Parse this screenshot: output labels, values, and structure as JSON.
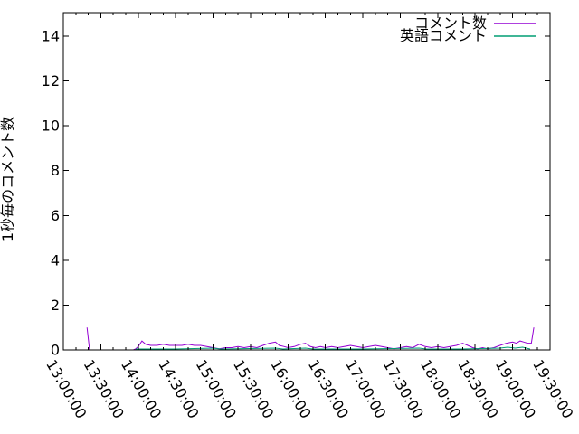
{
  "window": {
    "background": "#ffffff"
  },
  "chart_data": {
    "type": "line",
    "title": "",
    "xlabel": "",
    "ylabel": "1秒毎のコメント数",
    "x_tick_labels": [
      "13:00:00",
      "13:30:00",
      "14:00:00",
      "14:30:00",
      "15:00:00",
      "15:30:00",
      "16:00:00",
      "16:30:00",
      "17:00:00",
      "17:30:00",
      "18:00:00",
      "18:30:00",
      "19:00:00",
      "19:30:00"
    ],
    "x_minor_tick_minutes": 10,
    "y_ticks": [
      "0",
      "2",
      "4",
      "6",
      "8",
      "10",
      "12",
      "14"
    ],
    "ylim": [
      0,
      15.05
    ],
    "grid": "off",
    "legend_position": "top-right-inside",
    "axis_color": "#000000",
    "series": [
      {
        "name": "コメント数",
        "color": "#9400d3",
        "points": [
          [
            "13:19",
            1
          ],
          [
            "13:21",
            0
          ],
          [
            "13:30",
            0
          ],
          [
            "13:40",
            0
          ],
          [
            "13:50",
            0
          ],
          [
            "13:56",
            0
          ],
          [
            "13:58",
            0.05
          ],
          [
            "14:00",
            0.15
          ],
          [
            "14:03",
            0.4
          ],
          [
            "14:06",
            0.25
          ],
          [
            "14:10",
            0.2
          ],
          [
            "14:15",
            0.2
          ],
          [
            "14:20",
            0.25
          ],
          [
            "14:25",
            0.2
          ],
          [
            "14:30",
            0.2
          ],
          [
            "14:35",
            0.2
          ],
          [
            "14:40",
            0.25
          ],
          [
            "14:45",
            0.2
          ],
          [
            "14:50",
            0.2
          ],
          [
            "14:55",
            0.15
          ],
          [
            "15:00",
            0.1
          ],
          [
            "15:05",
            0.05
          ],
          [
            "15:10",
            0.1
          ],
          [
            "15:15",
            0.1
          ],
          [
            "15:20",
            0.15
          ],
          [
            "15:25",
            0.1
          ],
          [
            "15:30",
            0.15
          ],
          [
            "15:35",
            0.1
          ],
          [
            "15:40",
            0.2
          ],
          [
            "15:45",
            0.3
          ],
          [
            "15:50",
            0.35
          ],
          [
            "15:53",
            0.2
          ],
          [
            "15:57",
            0.15
          ],
          [
            "16:00",
            0.1
          ],
          [
            "16:05",
            0.15
          ],
          [
            "16:10",
            0.25
          ],
          [
            "16:14",
            0.3
          ],
          [
            "16:18",
            0.15
          ],
          [
            "16:22",
            0.1
          ],
          [
            "16:26",
            0.15
          ],
          [
            "16:30",
            0.1
          ],
          [
            "16:35",
            0.15
          ],
          [
            "16:40",
            0.1
          ],
          [
            "16:45",
            0.15
          ],
          [
            "16:50",
            0.2
          ],
          [
            "16:55",
            0.15
          ],
          [
            "17:00",
            0.1
          ],
          [
            "17:05",
            0.15
          ],
          [
            "17:10",
            0.2
          ],
          [
            "17:15",
            0.15
          ],
          [
            "17:20",
            0.1
          ],
          [
            "17:25",
            0.05
          ],
          [
            "17:30",
            0.1
          ],
          [
            "17:35",
            0.15
          ],
          [
            "17:40",
            0.1
          ],
          [
            "17:45",
            0.25
          ],
          [
            "17:50",
            0.15
          ],
          [
            "17:55",
            0.1
          ],
          [
            "18:00",
            0.15
          ],
          [
            "18:05",
            0.1
          ],
          [
            "18:10",
            0.15
          ],
          [
            "18:15",
            0.2
          ],
          [
            "18:20",
            0.3
          ],
          [
            "18:24",
            0.2
          ],
          [
            "18:28",
            0.1
          ],
          [
            "18:32",
            0.05
          ],
          [
            "18:36",
            0.1
          ],
          [
            "18:40",
            0.05
          ],
          [
            "18:45",
            0.1
          ],
          [
            "18:50",
            0.2
          ],
          [
            "18:55",
            0.3
          ],
          [
            "19:00",
            0.35
          ],
          [
            "19:03",
            0.3
          ],
          [
            "19:06",
            0.4
          ],
          [
            "19:09",
            0.35
          ],
          [
            "19:12",
            0.3
          ],
          [
            "19:15",
            0.3
          ],
          [
            "19:17",
            1
          ]
        ]
      },
      {
        "name": "英語コメント",
        "color": "#009e73",
        "points": [
          [
            "13:58",
            0.04
          ],
          [
            "14:30",
            0.04
          ],
          [
            "15:00",
            0.08
          ],
          [
            "15:06",
            0.04
          ],
          [
            "15:50",
            0.08
          ],
          [
            "15:56",
            0.04
          ],
          [
            "16:14",
            0.08
          ],
          [
            "16:20",
            0.04
          ],
          [
            "17:00",
            0.04
          ],
          [
            "17:45",
            0.08
          ],
          [
            "17:51",
            0.04
          ],
          [
            "18:20",
            0.04
          ],
          [
            "18:50",
            0.08
          ],
          [
            "18:56",
            0.12
          ],
          [
            "19:02",
            0.08
          ],
          [
            "19:08",
            0.12
          ],
          [
            "19:14",
            0.04
          ]
        ]
      }
    ]
  }
}
